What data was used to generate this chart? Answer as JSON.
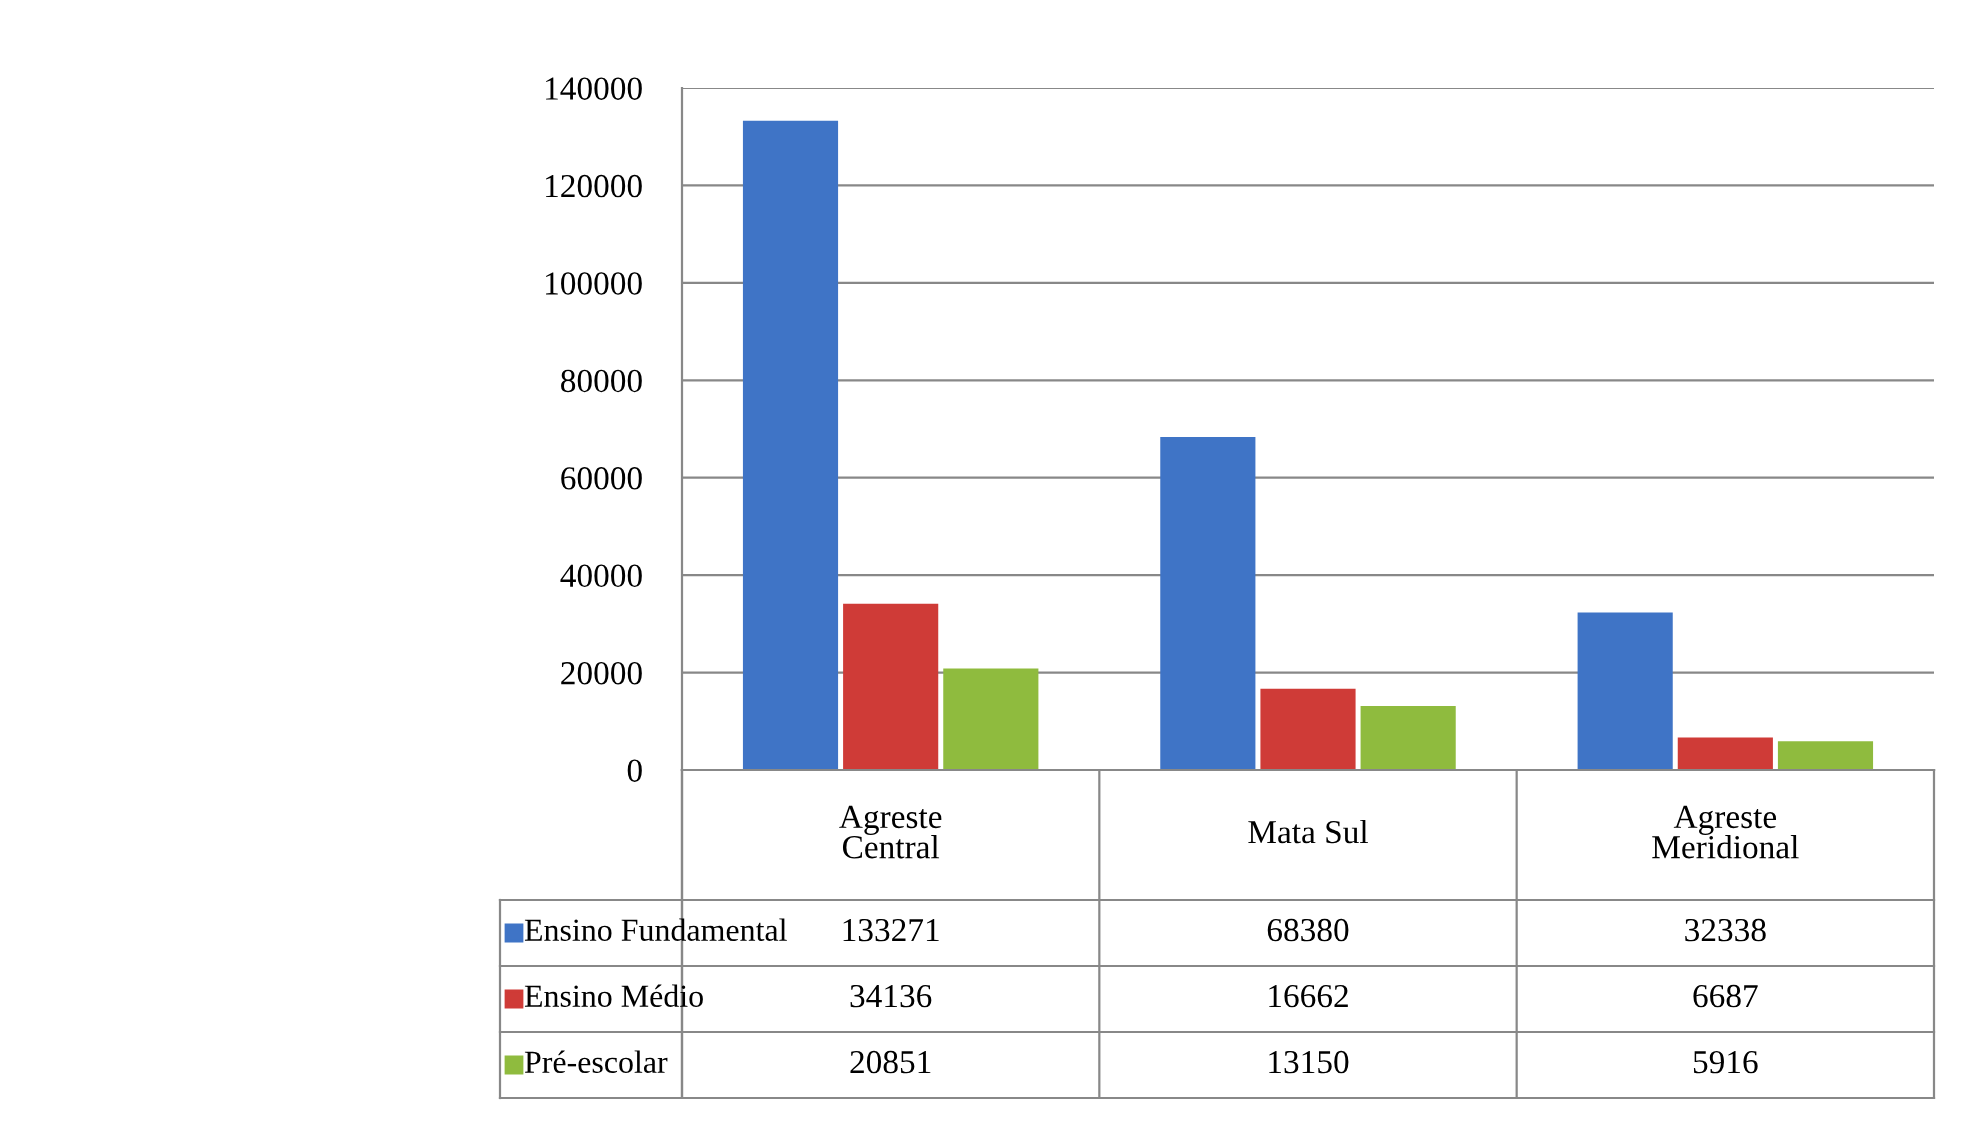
{
  "chart_data": {
    "type": "bar",
    "categories": [
      "Agreste\nCentral",
      "Mata Sul",
      "Agreste\nMeridional"
    ],
    "series": [
      {
        "name": "Ensino Fundamental",
        "color": "#3f74c6",
        "values": [
          133271,
          68380,
          32338
        ]
      },
      {
        "name": "Ensino Médio",
        "color": "#cf3b37",
        "values": [
          34136,
          16662,
          6687
        ]
      },
      {
        "name": "Pré-escolar",
        "color": "#8fbb3e",
        "values": [
          20851,
          13150,
          5916
        ]
      }
    ],
    "ylim": [
      0,
      140000
    ],
    "yticks": [
      0,
      20000,
      40000,
      60000,
      80000,
      100000,
      120000,
      140000
    ],
    "grid": "y",
    "data_labels": true,
    "legend": "bottom left"
  }
}
